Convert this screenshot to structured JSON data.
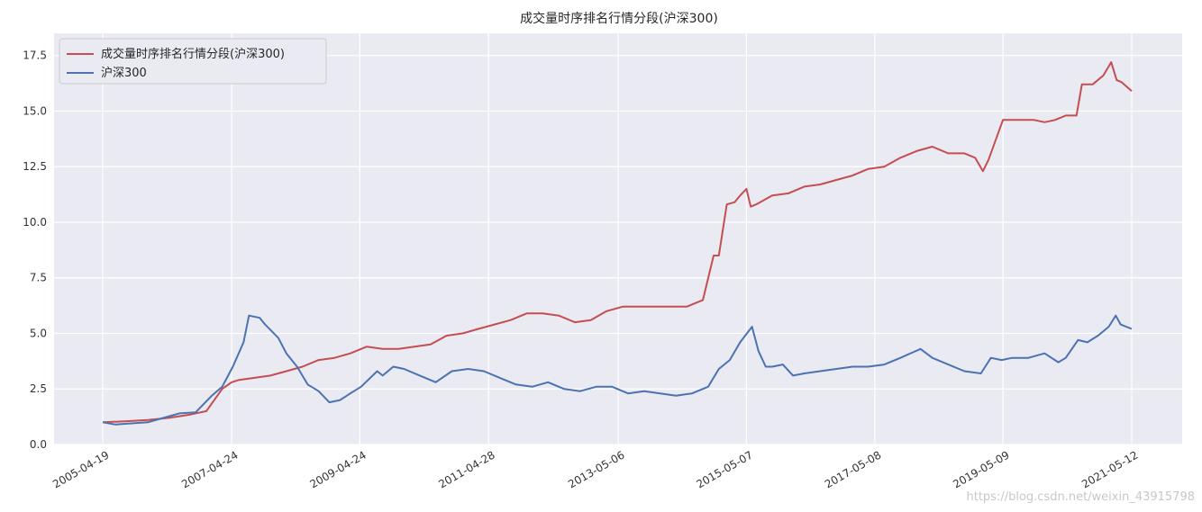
{
  "chart_data": {
    "type": "line",
    "title": "成交量时序排名行情分段(沪深300)",
    "xlabel": "",
    "ylabel": "",
    "x_range": [
      "2005-04-19",
      "2021-05-12"
    ],
    "ylim": [
      0,
      18.5
    ],
    "grid": true,
    "legend_position": "top-left",
    "x_ticks": [
      "2005-04-19",
      "2007-04-24",
      "2009-04-24",
      "2011-04-28",
      "2013-05-06",
      "2015-05-07",
      "2017-05-08",
      "2019-05-09",
      "2021-05-12"
    ],
    "y_ticks": [
      "0.0",
      "2.5",
      "5.0",
      "7.5",
      "10.0",
      "12.5",
      "15.0",
      "17.5"
    ],
    "y_tick_values": [
      0,
      2.5,
      5.0,
      7.5,
      10.0,
      12.5,
      15.0,
      17.5
    ],
    "series": [
      {
        "name": "成交量时序排名行情分段(沪深300)",
        "color": "#c44e52",
        "x": [
          "2005-04-19",
          "2005-09-01",
          "2006-01-01",
          "2006-05-01",
          "2006-09-01",
          "2006-12-01",
          "2007-01-15",
          "2007-03-01",
          "2007-04-24",
          "2007-06-01",
          "2007-09-01",
          "2007-12-01",
          "2008-03-01",
          "2008-06-01",
          "2008-09-01",
          "2008-12-01",
          "2009-03-01",
          "2009-06-01",
          "2009-09-01",
          "2009-12-01",
          "2010-03-01",
          "2010-06-01",
          "2010-09-01",
          "2010-12-01",
          "2011-03-01",
          "2011-06-01",
          "2011-09-01",
          "2011-12-01",
          "2012-03-01",
          "2012-06-01",
          "2012-09-01",
          "2012-12-01",
          "2013-03-01",
          "2013-06-01",
          "2013-09-01",
          "2013-12-01",
          "2014-03-01",
          "2014-06-01",
          "2014-09-01",
          "2014-11-01",
          "2014-12-01",
          "2015-01-15",
          "2015-03-01",
          "2015-04-01",
          "2015-05-07",
          "2015-06-01",
          "2015-07-01",
          "2015-10-01",
          "2016-01-01",
          "2016-04-01",
          "2016-07-01",
          "2016-10-01",
          "2017-01-01",
          "2017-04-01",
          "2017-07-01",
          "2017-10-01",
          "2018-01-01",
          "2018-04-01",
          "2018-07-01",
          "2018-10-01",
          "2018-12-01",
          "2019-01-15",
          "2019-02-15",
          "2019-05-09",
          "2019-08-01",
          "2019-11-01",
          "2020-01-01",
          "2020-03-01",
          "2020-05-01",
          "2020-07-01",
          "2020-08-01",
          "2020-10-01",
          "2020-12-01",
          "2021-01-15",
          "2021-02-15",
          "2021-03-15",
          "2021-05-12"
        ],
        "values": [
          1.0,
          1.05,
          1.1,
          1.2,
          1.35,
          1.5,
          2.0,
          2.5,
          2.8,
          2.9,
          3.0,
          3.1,
          3.3,
          3.5,
          3.8,
          3.9,
          4.1,
          4.4,
          4.3,
          4.3,
          4.4,
          4.5,
          4.9,
          5.0,
          5.2,
          5.4,
          5.6,
          5.9,
          5.9,
          5.8,
          5.5,
          5.6,
          6.0,
          6.2,
          6.2,
          6.2,
          6.2,
          6.2,
          6.5,
          8.5,
          8.5,
          10.8,
          10.9,
          11.2,
          11.5,
          10.7,
          10.8,
          11.2,
          11.3,
          11.6,
          11.7,
          11.9,
          12.1,
          12.4,
          12.5,
          12.9,
          13.2,
          13.4,
          13.1,
          13.1,
          12.9,
          12.3,
          12.8,
          14.6,
          14.6,
          14.6,
          14.5,
          14.6,
          14.8,
          14.8,
          16.2,
          16.2,
          16.6,
          17.2,
          16.4,
          16.3,
          15.9
        ]
      },
      {
        "name": "沪深300",
        "color": "#4c72b0",
        "x": [
          "2005-04-19",
          "2005-07-01",
          "2005-10-01",
          "2006-01-01",
          "2006-04-01",
          "2006-07-01",
          "2006-10-01",
          "2007-01-01",
          "2007-03-01",
          "2007-05-01",
          "2007-07-01",
          "2007-08-01",
          "2007-10-01",
          "2007-11-01",
          "2008-01-15",
          "2008-03-01",
          "2008-05-01",
          "2008-07-01",
          "2008-09-01",
          "2008-11-01",
          "2009-01-01",
          "2009-03-01",
          "2009-05-01",
          "2009-08-01",
          "2009-09-01",
          "2009-11-01",
          "2010-01-01",
          "2010-04-01",
          "2010-07-01",
          "2010-10-01",
          "2011-01-01",
          "2011-04-01",
          "2011-07-01",
          "2011-10-01",
          "2012-01-01",
          "2012-04-01",
          "2012-07-01",
          "2012-10-01",
          "2013-01-01",
          "2013-04-01",
          "2013-07-01",
          "2013-10-01",
          "2014-01-01",
          "2014-04-01",
          "2014-07-01",
          "2014-10-01",
          "2014-12-01",
          "2015-02-01",
          "2015-04-01",
          "2015-06-08",
          "2015-07-15",
          "2015-08-25",
          "2015-10-01",
          "2015-12-01",
          "2016-01-28",
          "2016-04-01",
          "2016-07-01",
          "2016-10-01",
          "2017-01-01",
          "2017-04-01",
          "2017-07-01",
          "2017-10-01",
          "2018-01-24",
          "2018-04-01",
          "2018-07-01",
          "2018-10-01",
          "2019-01-03",
          "2019-03-01",
          "2019-05-01",
          "2019-07-01",
          "2019-10-01",
          "2020-01-01",
          "2020-03-20",
          "2020-05-01",
          "2020-07-10",
          "2020-09-01",
          "2020-11-01",
          "2021-01-01",
          "2021-02-10",
          "2021-03-10",
          "2021-05-12"
        ],
        "values": [
          1.0,
          0.9,
          0.95,
          1.0,
          1.2,
          1.4,
          1.45,
          2.2,
          2.6,
          3.5,
          4.6,
          5.8,
          5.7,
          5.4,
          4.8,
          4.1,
          3.5,
          2.7,
          2.4,
          1.9,
          2.0,
          2.3,
          2.6,
          3.3,
          3.1,
          3.5,
          3.4,
          3.1,
          2.8,
          3.3,
          3.4,
          3.3,
          3.0,
          2.7,
          2.6,
          2.8,
          2.5,
          2.4,
          2.6,
          2.6,
          2.3,
          2.4,
          2.3,
          2.2,
          2.3,
          2.6,
          3.4,
          3.8,
          4.6,
          5.3,
          4.2,
          3.5,
          3.5,
          3.6,
          3.1,
          3.2,
          3.3,
          3.4,
          3.5,
          3.5,
          3.6,
          3.9,
          4.3,
          3.9,
          3.6,
          3.3,
          3.2,
          3.9,
          3.8,
          3.9,
          3.9,
          4.1,
          3.7,
          3.9,
          4.7,
          4.6,
          4.9,
          5.3,
          5.8,
          5.4,
          5.2
        ]
      }
    ]
  },
  "watermark": "https://blog.csdn.net/weixin_43915798"
}
